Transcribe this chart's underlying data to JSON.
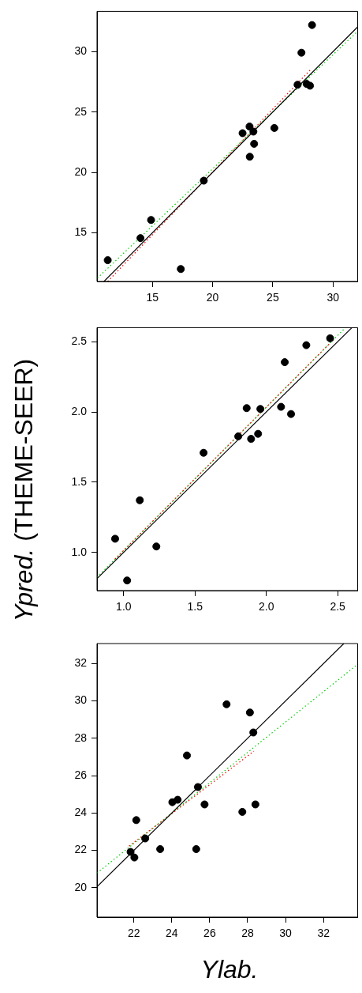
{
  "chart_data": [
    {
      "type": "scatter",
      "xlim": [
        10.4,
        32.05
      ],
      "ylim": [
        10.98,
        33.33
      ],
      "xticks": [
        15,
        20,
        25,
        30
      ],
      "yticks": [
        15,
        20,
        25,
        30
      ],
      "series": [
        {
          "type": "scatter",
          "color": "#000000",
          "marker": "circle",
          "x": [
            11.29,
            14.01,
            14.89,
            17.36,
            19.27,
            22.49,
            23.07,
            23.39,
            23.45,
            23.09,
            25.13,
            27.06,
            27.38,
            27.81,
            28.09,
            28.26
          ],
          "values": [
            12.74,
            14.57,
            16.07,
            12.01,
            19.32,
            23.25,
            23.8,
            23.38,
            22.37,
            21.3,
            23.68,
            27.26,
            29.91,
            27.33,
            27.18,
            32.2
          ]
        },
        {
          "type": "line",
          "color": "#000000",
          "line_style": "solid",
          "marker": "none",
          "x": [
            10.98,
            32.05
          ],
          "values": [
            10.98,
            32.05
          ]
        },
        {
          "type": "line",
          "color": "#ff0000",
          "line_style": "dotted",
          "marker": "none",
          "x": [
            11.29,
            28.13
          ],
          "values": [
            10.98,
            28.5
          ]
        },
        {
          "type": "line",
          "color": "#00cc00",
          "line_style": "dotted",
          "marker": "none",
          "x": [
            10.43,
            32.04
          ],
          "values": [
            11.26,
            31.67
          ]
        }
      ]
    },
    {
      "type": "scatter",
      "ylabel": "Ypred. (THEME-SEER)",
      "xlim": [
        0.813,
        2.64
      ],
      "ylim": [
        0.728,
        2.6
      ],
      "xticks": [
        {
          "value": 1,
          "label": "1.0"
        },
        {
          "value": 1.5,
          "label": "1.5"
        },
        {
          "value": 2,
          "label": "2.0"
        },
        {
          "value": 2.5,
          "label": "2.5"
        }
      ],
      "yticks": [
        {
          "value": 1,
          "label": "1.0"
        },
        {
          "value": 1.5,
          "label": "1.5"
        },
        {
          "value": 2,
          "label": "2.0"
        },
        {
          "value": 2.5,
          "label": "2.5"
        }
      ],
      "series": [
        {
          "type": "scatter",
          "color": "#000000",
          "marker": "circle",
          "x": [
            0.94,
            1.024,
            1.113,
            1.229,
            1.56,
            1.803,
            1.862,
            1.893,
            1.942,
            1.958,
            2.103,
            2.129,
            2.173,
            2.28,
            2.447
          ],
          "values": [
            1.097,
            0.8,
            1.371,
            1.042,
            1.709,
            1.826,
            2.027,
            1.808,
            1.844,
            2.021,
            2.036,
            2.354,
            1.985,
            2.475,
            2.524
          ]
        },
        {
          "type": "line",
          "color": "#000000",
          "line_style": "solid",
          "marker": "none",
          "x": [
            0.813,
            2.6
          ],
          "values": [
            0.813,
            2.6
          ]
        },
        {
          "type": "line",
          "color": "#ff0000",
          "line_style": "dotted",
          "marker": "none",
          "x": [
            0.94,
            2.447
          ],
          "values": [
            0.953,
            2.49
          ]
        },
        {
          "type": "line",
          "color": "#00cc00",
          "line_style": "dotted",
          "marker": "none",
          "x": [
            0.813,
            2.555
          ],
          "values": [
            0.823,
            2.6
          ]
        }
      ]
    },
    {
      "type": "scatter",
      "xlabel": "Ylab.",
      "xlim": [
        20.06,
        33.8
      ],
      "ylim": [
        18.43,
        33.07
      ],
      "xticks": [
        22,
        24,
        26,
        28,
        30,
        32
      ],
      "yticks": [
        20,
        22,
        24,
        26,
        28,
        30,
        32
      ],
      "series": [
        {
          "type": "scatter",
          "color": "#000000",
          "marker": "circle",
          "x": [
            21.83,
            22.03,
            22.13,
            22.6,
            23.39,
            24.03,
            24.31,
            24.8,
            25.29,
            25.38,
            25.73,
            26.89,
            27.72,
            28.12,
            28.3,
            28.41
          ],
          "values": [
            21.92,
            21.62,
            23.62,
            22.64,
            22.07,
            24.58,
            24.71,
            27.08,
            22.07,
            25.39,
            24.46,
            29.82,
            24.06,
            29.38,
            28.31,
            24.46
          ]
        },
        {
          "type": "line",
          "color": "#000000",
          "line_style": "solid",
          "marker": "none",
          "x": [
            20.06,
            33.07
          ],
          "values": [
            20.06,
            33.07
          ]
        },
        {
          "type": "line",
          "color": "#ff0000",
          "line_style": "dotted",
          "marker": "none",
          "x": [
            21.75,
            28.33
          ],
          "values": [
            22.23,
            27.31
          ]
        },
        {
          "type": "line",
          "color": "#00cc00",
          "line_style": "dotted",
          "marker": "none",
          "x": [
            20.06,
            33.8
          ],
          "values": [
            20.79,
            31.96
          ]
        }
      ]
    }
  ]
}
